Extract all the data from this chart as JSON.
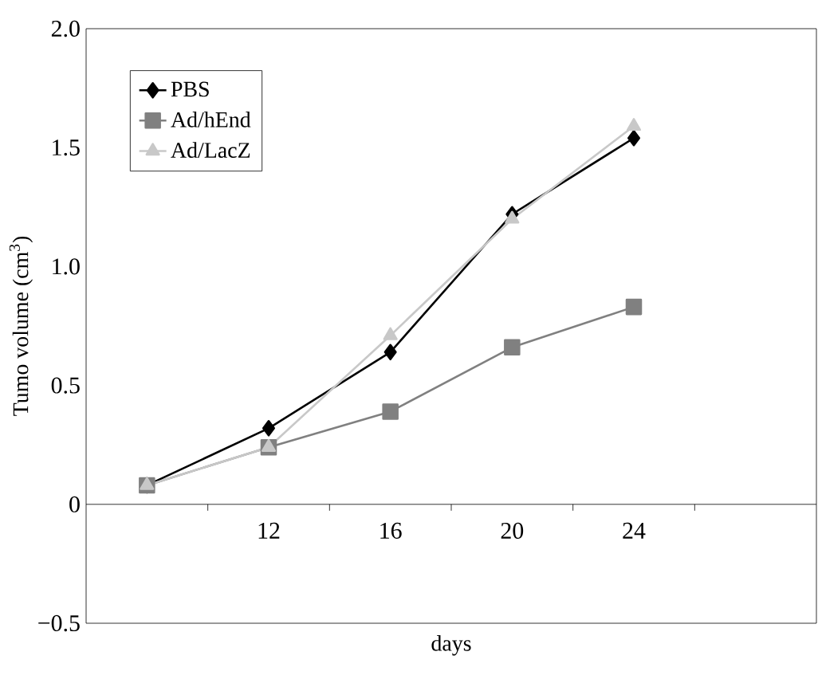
{
  "chart_data": {
    "type": "line",
    "xlabel": "days",
    "ylabel": "Tumo volume (cm$^{3}$)",
    "categories": [
      null,
      "12",
      "16",
      "20",
      "24",
      null
    ],
    "series": [
      {
        "name": "PBS",
        "color": "#000000",
        "marker": "diamond",
        "values": [
          0.08,
          0.32,
          0.64,
          1.22,
          1.54,
          null
        ]
      },
      {
        "name": "Ad/hEnd",
        "color": "#808080",
        "marker": "square",
        "values": [
          0.08,
          0.24,
          0.39,
          0.66,
          0.83,
          null
        ]
      },
      {
        "name": "Ad/LacZ",
        "color": "#c8c8c8",
        "marker": "triangle",
        "values": [
          0.08,
          0.24,
          0.71,
          1.2,
          1.59,
          null
        ]
      }
    ],
    "ylim": [
      -0.5,
      2.0
    ],
    "yticks": [
      {
        "value": -0.5,
        "label": "−0.5"
      },
      0,
      0.5,
      {
        "value": 1.0,
        "label": "1.0"
      },
      1.5,
      {
        "value": 2.0,
        "label": "2.0"
      }
    ],
    "grid": false,
    "legend": "top left",
    "line_style": "solid"
  }
}
